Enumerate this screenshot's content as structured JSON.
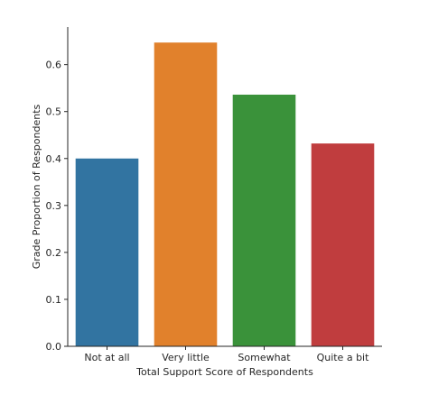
{
  "chart_data": {
    "type": "bar",
    "xlabel": "Total Support Score of Respondents",
    "ylabel": "Grade Proportion of Respondents",
    "categories": [
      "Not at all",
      "Very little",
      "Somewhat",
      "Quite a bit"
    ],
    "values": [
      0.4,
      0.647,
      0.536,
      0.432
    ],
    "colors": [
      "#3274a1",
      "#e1812c",
      "#3a923a",
      "#c03d3e"
    ],
    "ylim": [
      0,
      0.68
    ],
    "yticks": [
      0.0,
      0.1,
      0.2,
      0.3,
      0.4,
      0.5,
      0.6
    ],
    "ytick_labels": [
      "0.0",
      "0.1",
      "0.2",
      "0.3",
      "0.4",
      "0.5",
      "0.6"
    ],
    "grid": false,
    "legend": "none"
  }
}
